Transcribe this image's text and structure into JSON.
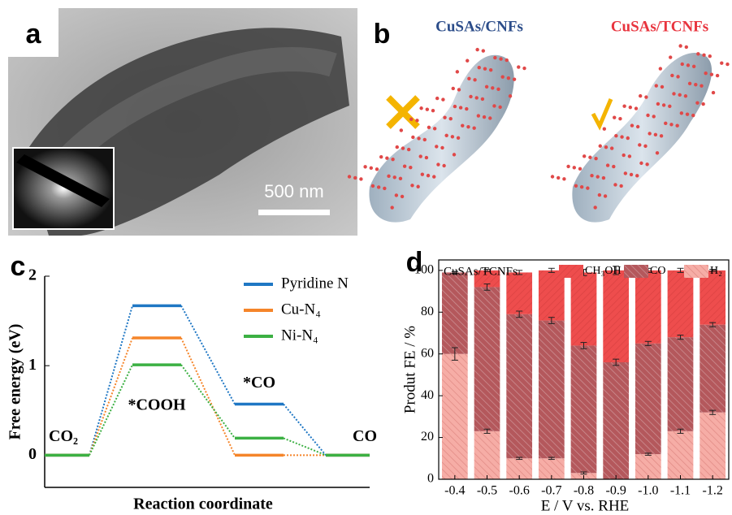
{
  "panel_a": {
    "label": "a",
    "scale_bar": "500 nm"
  },
  "panel_b": {
    "label": "b",
    "left_title": "CuSAs/CNFs",
    "right_title": "CuSAs/TCNFs"
  },
  "chart_data": [
    {
      "panel_label": "c",
      "type": "energy",
      "categories": [
        "CO₂",
        "*COOH",
        "*CO",
        "CO"
      ],
      "series": [
        {
          "name": "Pyridine N",
          "color": "#1f77c4",
          "values": [
            0,
            1.67,
            0.57,
            0
          ]
        },
        {
          "name": "Cu-N₄",
          "color": "#f5852a",
          "values": [
            0,
            1.31,
            0,
            0
          ]
        },
        {
          "name": "Ni-N₄",
          "color": "#3cb043",
          "values": [
            0,
            1.01,
            0.19,
            0
          ]
        }
      ],
      "ylim": [
        -0.36,
        2.0
      ],
      "yticks": [
        0,
        1,
        2
      ],
      "xlabel": "Reaction coordinate",
      "ylabel": "Free energy (eV)",
      "legend": "upper right"
    },
    {
      "panel_label": "d",
      "type": "bar",
      "stacked": true,
      "title": "CuSAs/TCNFs",
      "categories": [
        "-0.4",
        "-0.5",
        "-0.6",
        "-0.7",
        "-0.8",
        "-0.9",
        "-1.0",
        "-1.1",
        "-1.2"
      ],
      "series": [
        {
          "name": "H₂",
          "color": "#f6ada6",
          "values": [
            60,
            23,
            10,
            10,
            3,
            0,
            12,
            23,
            32
          ],
          "errors": [
            3,
            1,
            0.5,
            0.5,
            0.5,
            0,
            0.5,
            1,
            1
          ]
        },
        {
          "name": "CO",
          "color": "#b4585c",
          "values": [
            39,
            69,
            69,
            66,
            61,
            56,
            53,
            45,
            42
          ],
          "errors": [
            0.5,
            1.5,
            1.5,
            1.5,
            1.5,
            1.5,
            1,
            1,
            1
          ]
        },
        {
          "name": "CH₃OH",
          "color": "#ee4d4d",
          "values": [
            0,
            8,
            20,
            24,
            35,
            44,
            35,
            32,
            26
          ],
          "errors": [
            0.5,
            0.5,
            1,
            1,
            1.5,
            2,
            1,
            1,
            0.5
          ]
        }
      ],
      "ylim": [
        0,
        105
      ],
      "yticks": [
        0,
        20,
        40,
        60,
        80,
        100
      ],
      "xlabel": "E / V vs. RHE",
      "ylabel": "Produt FE / %",
      "legend": "top"
    }
  ]
}
